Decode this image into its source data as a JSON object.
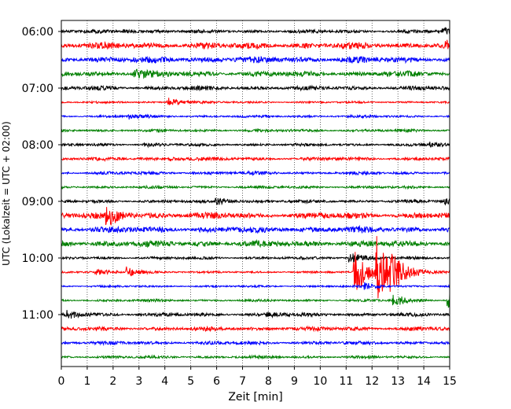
{
  "chart_data": {
    "type": "line",
    "title": "",
    "xlabel": "Zeit  [min]",
    "ylabel": "UTC (Lokalzeit = UTC + 02:00)",
    "xlim": [
      0,
      15
    ],
    "x_ticks": [
      "0",
      "1",
      "2",
      "3",
      "4",
      "5",
      "6",
      "7",
      "8",
      "9",
      "10",
      "11",
      "12",
      "13",
      "14",
      "15"
    ],
    "y_ticks": [
      "06:00",
      "07:00",
      "08:00",
      "09:00",
      "10:00",
      "11:00"
    ],
    "grid": "vertical dotted",
    "colors": [
      "#000000",
      "#ff0000",
      "#0000ff",
      "#008000"
    ],
    "trace_interval_minutes": 15,
    "series": [
      {
        "start": "06:00",
        "amp": 2.5,
        "events": [
          {
            "t": 2.4,
            "a": 2
          },
          {
            "t": 14.7,
            "a": 4
          }
        ]
      },
      {
        "start": "06:15",
        "amp": 4.5,
        "events": [
          {
            "t": 14.8,
            "a": 5
          }
        ]
      },
      {
        "start": "06:30",
        "amp": 4.5,
        "events": []
      },
      {
        "start": "06:45",
        "amp": 4,
        "events": [
          {
            "t": 2.8,
            "a": 5
          }
        ]
      },
      {
        "start": "07:00",
        "amp": 3,
        "events": []
      },
      {
        "start": "07:15",
        "amp": 1.5,
        "events": [
          {
            "t": 4.1,
            "a": 6
          }
        ]
      },
      {
        "start": "07:30",
        "amp": 1.8,
        "events": [
          {
            "t": 2.6,
            "a": 3
          }
        ]
      },
      {
        "start": "07:45",
        "amp": 2,
        "events": []
      },
      {
        "start": "08:00",
        "amp": 2,
        "events": [
          {
            "t": 3.2,
            "a": 2
          },
          {
            "t": 14.2,
            "a": 3
          }
        ]
      },
      {
        "start": "08:15",
        "amp": 2.5,
        "events": [
          {
            "t": 4.2,
            "a": 2
          }
        ]
      },
      {
        "start": "08:30",
        "amp": 2.3,
        "events": []
      },
      {
        "start": "08:45",
        "amp": 2,
        "events": []
      },
      {
        "start": "09:00",
        "amp": 2.2,
        "events": [
          {
            "t": 5.95,
            "a": 6
          },
          {
            "t": 14.8,
            "a": 4
          }
        ]
      },
      {
        "start": "09:15",
        "amp": 4.5,
        "events": [
          {
            "t": 1.7,
            "a": 14
          }
        ]
      },
      {
        "start": "09:30",
        "amp": 4.5,
        "events": []
      },
      {
        "start": "09:45",
        "amp": 4.5,
        "events": []
      },
      {
        "start": "10:00",
        "amp": 2,
        "events": [
          {
            "t": 11.1,
            "a": 8
          }
        ]
      },
      {
        "start": "10:15",
        "amp": 1.5,
        "events": [
          {
            "t": 1.3,
            "a": 3
          },
          {
            "t": 2.5,
            "a": 7
          },
          {
            "t": 11.3,
            "a": 32
          },
          {
            "t": 12.15,
            "a": 44
          },
          {
            "t": 12.7,
            "a": 20
          }
        ]
      },
      {
        "start": "10:30",
        "amp": 1.5,
        "events": [
          {
            "t": 11.7,
            "a": 4
          }
        ]
      },
      {
        "start": "10:45",
        "amp": 1.8,
        "events": [
          {
            "t": 12.8,
            "a": 8
          },
          {
            "t": 14.9,
            "a": 10
          }
        ]
      },
      {
        "start": "11:00",
        "amp": 2.5,
        "events": [
          {
            "t": 0.2,
            "a": 5
          },
          {
            "t": 7.9,
            "a": 3
          }
        ]
      },
      {
        "start": "11:15",
        "amp": 3,
        "events": []
      },
      {
        "start": "11:30",
        "amp": 2.5,
        "events": []
      },
      {
        "start": "11:45",
        "amp": 2,
        "events": []
      }
    ]
  }
}
